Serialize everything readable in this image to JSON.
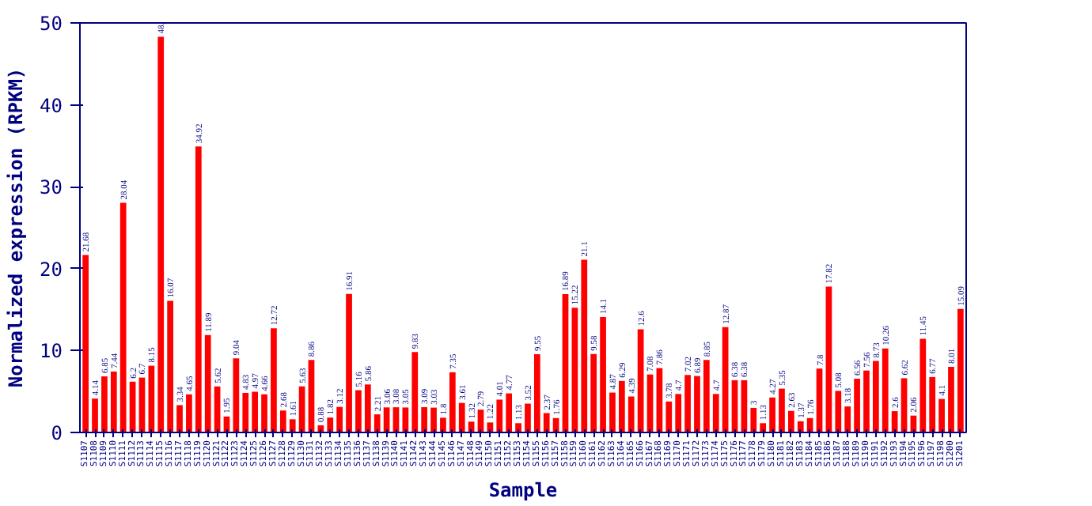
{
  "chart_data": {
    "type": "bar",
    "xlabel": "Sample",
    "ylabel": "Normalized expression (RPKM)",
    "categories": [
      "S1107",
      "S1108",
      "S1109",
      "S1110",
      "S1111",
      "S1112",
      "S1113",
      "S1114",
      "S1115",
      "S1116",
      "S1117",
      "S1118",
      "S1119",
      "S1120",
      "S1121",
      "S1122",
      "S1123",
      "S1124",
      "S1125",
      "S1126",
      "S1127",
      "S1128",
      "S1129",
      "S1130",
      "S1131",
      "S1132",
      "S1133",
      "S1134",
      "S1135",
      "S1136",
      "S1137",
      "S1138",
      "S1139",
      "S1140",
      "S1141",
      "S1142",
      "S1143",
      "S1144",
      "S1145",
      "S1146",
      "S1147",
      "S1148",
      "S1149",
      "S1150",
      "S1151",
      "S1152",
      "S1153",
      "S1154",
      "S1155",
      "S1156",
      "S1157",
      "S1158",
      "S1159",
      "S1160",
      "S1161",
      "S1162",
      "S1163",
      "S1164",
      "S1165",
      "S1166",
      "S1167",
      "S1168",
      "S1169",
      "S1170",
      "S1171",
      "S1172",
      "S1173",
      "S1174",
      "S1175",
      "S1176",
      "S1177",
      "S1178",
      "S1179",
      "S1180",
      "S1181",
      "S1182",
      "S1183",
      "S1184",
      "S1185",
      "S1186",
      "S1187",
      "S1188",
      "S1189",
      "S1190",
      "S1191",
      "S1192",
      "S1193",
      "S1194",
      "S1195",
      "S1196",
      "S1197",
      "S1198",
      "S1200",
      "S1201"
    ],
    "values": [
      21.68,
      4.14,
      6.85,
      7.44,
      28.04,
      6.2,
      6.7,
      8.15,
      48.3,
      16.07,
      3.34,
      4.65,
      34.92,
      11.89,
      5.62,
      1.95,
      9.04,
      4.83,
      4.97,
      4.66,
      12.72,
      2.68,
      1.61,
      5.63,
      8.86,
      0.88,
      1.82,
      3.12,
      16.91,
      5.16,
      5.86,
      2.21,
      3.06,
      3.08,
      3.05,
      9.83,
      3.09,
      3.03,
      1.8,
      7.35,
      3.61,
      1.32,
      2.79,
      1.22,
      4.01,
      4.77,
      1.13,
      3.52,
      9.55,
      2.37,
      1.76,
      16.89,
      15.22,
      21.1,
      9.58,
      14.1,
      4.87,
      6.29,
      4.39,
      12.6,
      7.08,
      7.86,
      3.78,
      4.7,
      7.02,
      6.89,
      8.85,
      4.7,
      12.87,
      6.38,
      6.38,
      3,
      1.13,
      4.27,
      5.35,
      2.63,
      1.37,
      1.76,
      7.8,
      17.82,
      5.08,
      3.18,
      6.56,
      7.56,
      8.73,
      10.26,
      2.6,
      6.62,
      2.06,
      11.45,
      6.77,
      4.1,
      8.01,
      15.09
    ],
    "value_labels": [
      "21.68",
      "4.14",
      "6.85",
      "7.44",
      "28.04",
      "6.2",
      "6.7",
      "8.15",
      "48.",
      "16.07",
      "3.34",
      "4.65",
      "34.92",
      "11.89",
      "5.62",
      "1.95",
      "9.04",
      "4.83",
      "4.97",
      "4.66",
      "12.72",
      "2.68",
      "1.61",
      "5.63",
      "8.86",
      "0.88",
      "1.82",
      "3.12",
      "16.91",
      "5.16",
      "5.86",
      "2.21",
      "3.06",
      "3.08",
      "3.05",
      "9.83",
      "3.09",
      "3.03",
      "1.8",
      "7.35",
      "3.61",
      "1.32",
      "2.79",
      "1.22",
      "4.01",
      "4.77",
      "1.13",
      "3.52",
      "9.55",
      "2.37",
      "1.76",
      "16.89",
      "15.22",
      "21.1",
      "9.58",
      "14.1",
      "4.87",
      "6.29",
      "4.39",
      "12.6",
      "7.08",
      "7.86",
      "3.78",
      "4.7",
      "7.02",
      "6.89",
      "8.85",
      "4.7",
      "12.87",
      "6.38",
      "6.38",
      "3",
      "1.13",
      "4.27",
      "5.35",
      "2.63",
      "1.37",
      "1.76",
      "7.8",
      "17.82",
      "5.08",
      "3.18",
      "6.56",
      "7.56",
      "8.73",
      "10.26",
      "2.6",
      "6.62",
      "2.06",
      "11.45",
      "6.77",
      "4.1",
      "8.01",
      "15.09"
    ],
    "color": "#ff0000",
    "ylim": [
      0,
      50
    ],
    "yticks": [
      0,
      10,
      20,
      30,
      40,
      50
    ],
    "grid": false
  }
}
